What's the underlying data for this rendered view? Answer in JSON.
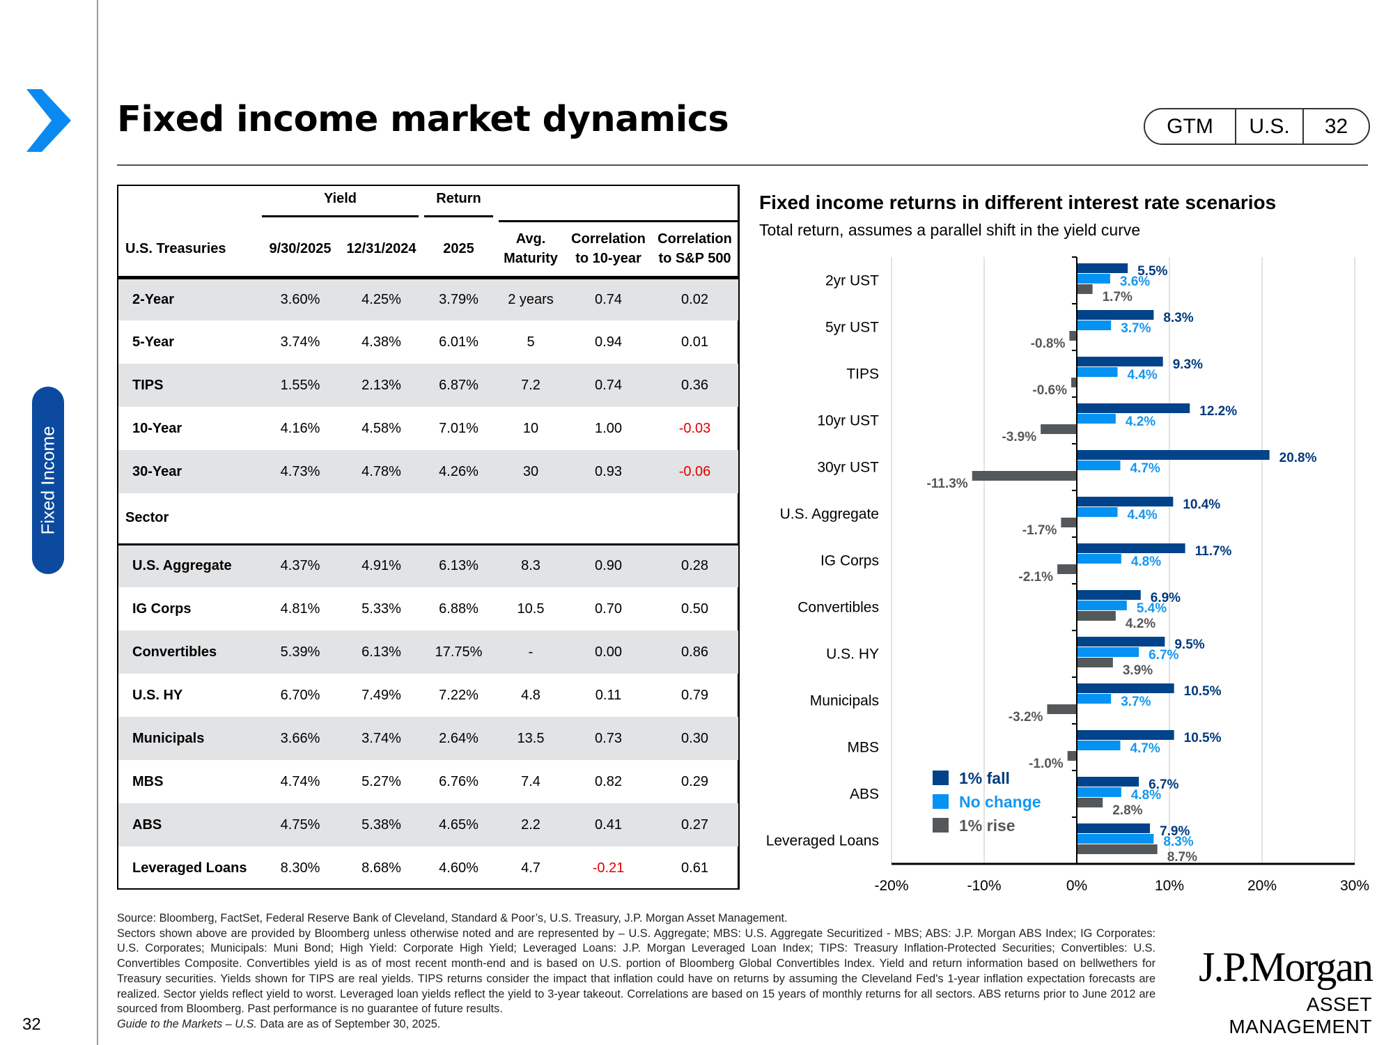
{
  "page": {
    "title": "Fixed income market dynamics",
    "side_tab": "Fixed Income",
    "page_number": "32",
    "badge": {
      "guide": "GTM",
      "region": "U.S.",
      "page": "32"
    }
  },
  "table": {
    "group_headers": {
      "yield": "Yield",
      "return": "Return"
    },
    "columns": [
      "U.S. Treasuries",
      "9/30/2025",
      "12/31/2024",
      "2025",
      "Avg.",
      "Maturity",
      "Correlation",
      "to 10-year",
      "Correlation",
      "to S&P 500"
    ],
    "treasuries": [
      [
        "2-Year",
        "3.60%",
        "4.25%",
        "3.79%",
        "2 years",
        "0.74",
        "0.02"
      ],
      [
        "5-Year",
        "3.74%",
        "4.38%",
        "6.01%",
        "5",
        "0.94",
        "0.01"
      ],
      [
        "TIPS",
        "1.55%",
        "2.13%",
        "6.87%",
        "7.2",
        "0.74",
        "0.36"
      ],
      [
        "10-Year",
        "4.16%",
        "4.58%",
        "7.01%",
        "10",
        "1.00",
        "-0.03"
      ],
      [
        "30-Year",
        "4.73%",
        "4.78%",
        "4.26%",
        "30",
        "0.93",
        "-0.06"
      ]
    ],
    "sector_label": "Sector",
    "sectors": [
      [
        "U.S. Aggregate",
        "4.37%",
        "4.91%",
        "6.13%",
        "8.3",
        "0.90",
        "0.28"
      ],
      [
        "IG Corps",
        "4.81%",
        "5.33%",
        "6.88%",
        "10.5",
        "0.70",
        "0.50"
      ],
      [
        "Convertibles",
        "5.39%",
        "6.13%",
        "17.75%",
        "-",
        "0.00",
        "0.86"
      ],
      [
        "U.S. HY",
        "6.70%",
        "7.49%",
        "7.22%",
        "4.8",
        "0.11",
        "0.79"
      ],
      [
        "Municipals",
        "3.66%",
        "3.74%",
        "2.64%",
        "13.5",
        "0.73",
        "0.30"
      ],
      [
        "MBS",
        "4.74%",
        "5.27%",
        "6.76%",
        "7.4",
        "0.82",
        "0.29"
      ],
      [
        "ABS",
        "4.75%",
        "5.38%",
        "4.65%",
        "2.2",
        "0.41",
        "0.27"
      ],
      [
        "Leveraged Loans",
        "8.30%",
        "8.68%",
        "4.60%",
        "4.7",
        "-0.21",
        "0.61"
      ]
    ],
    "negative_color": "#e00000"
  },
  "chart_data": {
    "type": "bar",
    "orientation": "horizontal",
    "title": "Fixed income returns in different interest rate scenarios",
    "subtitle": "Total return, assumes a parallel shift in the yield curve",
    "categories": [
      "2yr UST",
      "5yr UST",
      "TIPS",
      "10yr UST",
      "30yr UST",
      "U.S. Aggregate",
      "IG Corps",
      "Convertibles",
      "U.S. HY",
      "Municipals",
      "MBS",
      "ABS",
      "Leveraged Loans"
    ],
    "series": [
      {
        "name": "1% fall",
        "color": "#00438a",
        "label_color": "#003a7d",
        "values": [
          5.5,
          8.3,
          9.3,
          12.2,
          20.8,
          10.4,
          11.7,
          6.9,
          9.5,
          10.5,
          10.5,
          6.7,
          7.9
        ]
      },
      {
        "name": "No change",
        "color": "#0592f2",
        "label_color": "#1497f0",
        "values": [
          3.6,
          3.7,
          4.4,
          4.2,
          4.7,
          4.4,
          4.8,
          5.4,
          6.7,
          3.7,
          4.7,
          4.8,
          8.3
        ]
      },
      {
        "name": "1% rise",
        "color": "#55585b",
        "label_color": "#55585b",
        "values": [
          1.7,
          -0.8,
          -0.6,
          -3.9,
          -11.3,
          -1.7,
          -2.1,
          4.2,
          3.9,
          -3.2,
          -1.0,
          2.8,
          8.7
        ]
      }
    ],
    "xlim": [
      -20,
      30
    ],
    "xticks": [
      "-20%",
      "-10%",
      "0%",
      "10%",
      "20%",
      "30%"
    ],
    "xtick_values": [
      -20,
      -10,
      0,
      10,
      20,
      30
    ],
    "value_format": "%",
    "grid": true,
    "legend_position": "bottom-left"
  },
  "footnotes": [
    "Source: Bloomberg, FactSet, Federal Reserve Bank of Cleveland, Standard & Poor’s, U.S. Treasury, J.P. Morgan Asset Management.",
    "Sectors shown above are provided by Bloomberg unless otherwise noted and are represented by – U.S. Aggregate; MBS: U.S. Aggregate Securitized - MBS; ABS: J.P. Morgan ABS Index; IG Corporates: U.S. Corporates; Municipals: Muni Bond; High Yield: Corporate High Yield; Leveraged Loans: J.P. Morgan Leveraged Loan Index; TIPS: Treasury Inflation-Protected Securities; Convertibles: U.S. Convertibles Composite. Convertibles yield is as of most recent month-end and is based on U.S. portion of Bloomberg Global Convertibles Index. Yield and return information based on bellwethers for Treasury securities. Yields shown for TIPS are real yields. TIPS returns consider the impact that inflation could have on returns by assuming the Cleveland Fed's 1-year inflation expectation forecasts are realized. Sector yields reflect yield to worst. Leveraged loan yields reflect the yield to 3-year takeout. Correlations are based on 15 years of monthly returns for all sectors. ABS returns prior to June 2012 are sourced from Bloomberg. Past performance is no guarantee of future results."
  ],
  "guide_note": {
    "italic": "Guide to the Markets – U.S.",
    "rest": " Data are as of September 30, 2025."
  },
  "logo": {
    "line1": "J.P.Morgan",
    "line2": "ASSET MANAGEMENT"
  },
  "colors": {
    "brand_blue": "#0b4a9e",
    "chevron": "#0a8af0",
    "row_shade": "#e2e3e5"
  }
}
